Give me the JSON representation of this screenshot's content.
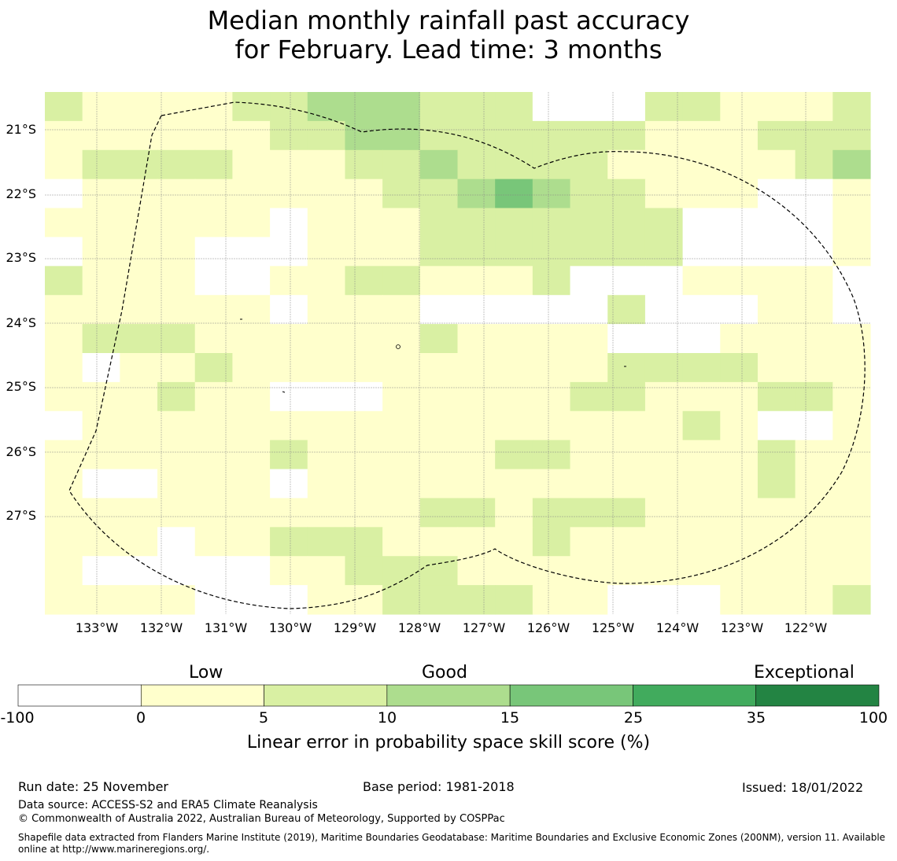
{
  "title": {
    "line1": "Median monthly rainfall past accuracy",
    "line2": "for February. Lead time: 3 months"
  },
  "map": {
    "lat_labels": [
      "21°S",
      "22°S",
      "23°S",
      "24°S",
      "25°S",
      "26°S",
      "27°S"
    ],
    "lon_labels": [
      "133°W",
      "132°W",
      "131°W",
      "130°W",
      "129°W",
      "128°W",
      "127°W",
      "126°W",
      "125°W",
      "124°W",
      "123°W",
      "122°W"
    ],
    "boundary": "dashed EEZ outline",
    "grid_rows": [
      "2111122333222000221112",
      "1111112233222222111222",
      "1222211122322221111123",
      "0111111112234322111001",
      "1111110111222222200001",
      "0111000111222222200001",
      "2111001122111200011110",
      "1111110111000002000110",
      "1222111111211110001111",
      "1011211111111112222111",
      "1112110001111122111221",
      "0111111111111111121001",
      "1111112111112211111211",
      "1001110111111111111211",
      "1111111111221222111111",
      "1110112221111211111111",
      "1000001122211111111111",
      "1111000112222110001112"
    ]
  },
  "colorbar": {
    "categories": [
      "Low",
      "Good",
      "Exceptional"
    ],
    "ticks": [
      "-100",
      "0",
      "5",
      "10",
      "15",
      "25",
      "35",
      "100"
    ],
    "colors": [
      "#ffffff",
      "#ffffcc",
      "#d9f0a3",
      "#addd8e",
      "#78c679",
      "#41ab5d",
      "#238443"
    ],
    "label": "Linear error in probability space skill score (%)"
  },
  "footer": {
    "run_date": "Run date: 25 November",
    "base_period": "Base period: 1981-2018",
    "issued": "Issued: 18/01/2022",
    "data_source": "Data source: ACCESS-S2 and ERA5 Climate Reanalysis",
    "copyright": "© Commonwealth of Australia 2022, Australian Bureau of Meteorology, Supported by COSPPac",
    "shapefile": "Shapefile data extracted from Flanders Marine Institute (2019), Maritime Boundaries Geodatabase: Maritime Boundaries and Exclusive Economic Zones (200NM), version 11. Available online at http://www.marineregions.org/."
  }
}
